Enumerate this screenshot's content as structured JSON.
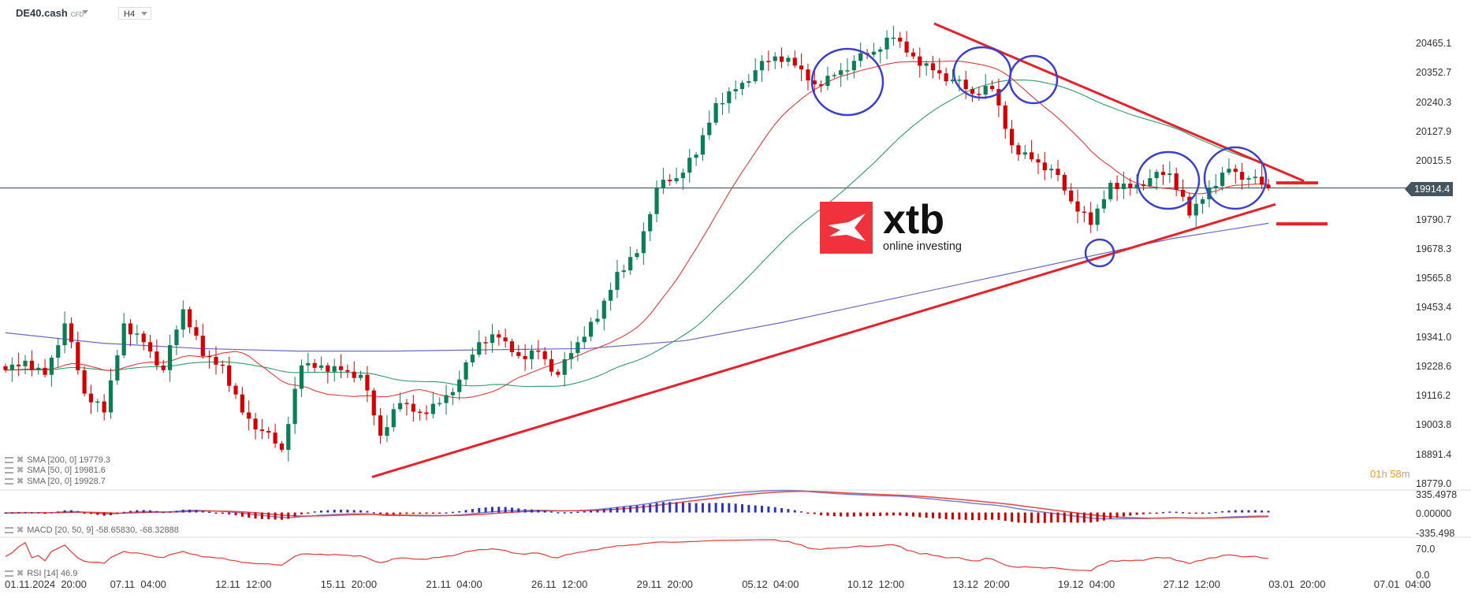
{
  "header": {
    "symbol": "DE40.cash",
    "symbol_type": "CFD",
    "timeframe": "H4"
  },
  "price_axis": [
    "20465.1",
    "20352.7",
    "20240.3",
    "20127.9",
    "20015.5",
    "19790.7",
    "19678.3",
    "19565.8",
    "19453.4",
    "19341.0",
    "19228.6",
    "19116.2",
    "19003.8",
    "18891.4",
    "18779.0"
  ],
  "current_price": "19914.4",
  "countdown": {
    "hours": "01",
    "h": "h",
    "minutes": "58",
    "m": "m"
  },
  "macd_axis": [
    "335.4978",
    "0.00000",
    "-335.498"
  ],
  "rsi_axis": [
    "70.0",
    "0.0"
  ],
  "time_axis": [
    "01.11.2024  20:00",
    "07.11  04:00",
    "12.11  12:00",
    "15.11  20:00",
    "21.11  04:00",
    "26.11  12:00",
    "29.11  20:00",
    "05.12  04:00",
    "10.12  12:00",
    "13.12  20:00",
    "19.12  04:00",
    "27.12  12:00",
    "03.01  20:00",
    "07.01  04:00"
  ],
  "legends": {
    "sma200": "SMA  [200,  0] 19779.3",
    "sma50": "SMA  [50,  0] 19981.6",
    "sma20": "SMA  [20,  0] 19928.7",
    "macd": "MACD  [20,  50,  9] -58.65830,  -68.32888",
    "rsi": "RSI  [14]  46.9"
  },
  "logo": {
    "brand": "xtb",
    "tagline": "online investing",
    "color": "#e8202a"
  },
  "colors": {
    "up": "#0a7f56",
    "down": "#d40000",
    "sma20": "#e53935",
    "sma50": "#2e9e6a",
    "sma200": "#6a6ac8",
    "annotation_line": "#e8202a",
    "annotation_circle": "#3a3fcf",
    "price_line": "#45555f"
  },
  "chart_data": {
    "type": "candlestick",
    "instrument": "DE40.cash",
    "timeframe": "H4",
    "ylim": [
      18779.0,
      20465.1
    ],
    "closes": [
      19217,
      19253,
      19199,
      19396,
      19127,
      19055,
      19396,
      19324,
      19217,
      19450,
      19271,
      19235,
      19055,
      18984,
      18912,
      19235,
      19235,
      19217,
      19199,
      18966,
      19091,
      19055,
      19091,
      19181,
      19324,
      19342,
      19271,
      19289,
      19199,
      19324,
      19414,
      19593,
      19665,
      19916,
      19952,
      20042,
      20239,
      20293,
      20365,
      20418,
      20383,
      20311,
      20347,
      20401,
      20436,
      20490,
      20418,
      20365,
      20329,
      20275,
      20293,
      20078,
      20024,
      19988,
      19863,
      19773,
      19934,
      19916,
      19952,
      19970,
      19809,
      19916,
      19988,
      19952,
      19914.4
    ],
    "sma200": [
      19360,
      19320,
      19300,
      19290,
      19290,
      19295,
      19300,
      19330,
      19400,
      19480,
      19560,
      19640,
      19720,
      19779.3
    ],
    "indicators": {
      "sma200_last": 19779.3,
      "sma50_last": 19981.6,
      "sma20_last": 19928.7,
      "macd": -58.6583,
      "macd_signal": -68.32888,
      "rsi": 46.9
    }
  }
}
